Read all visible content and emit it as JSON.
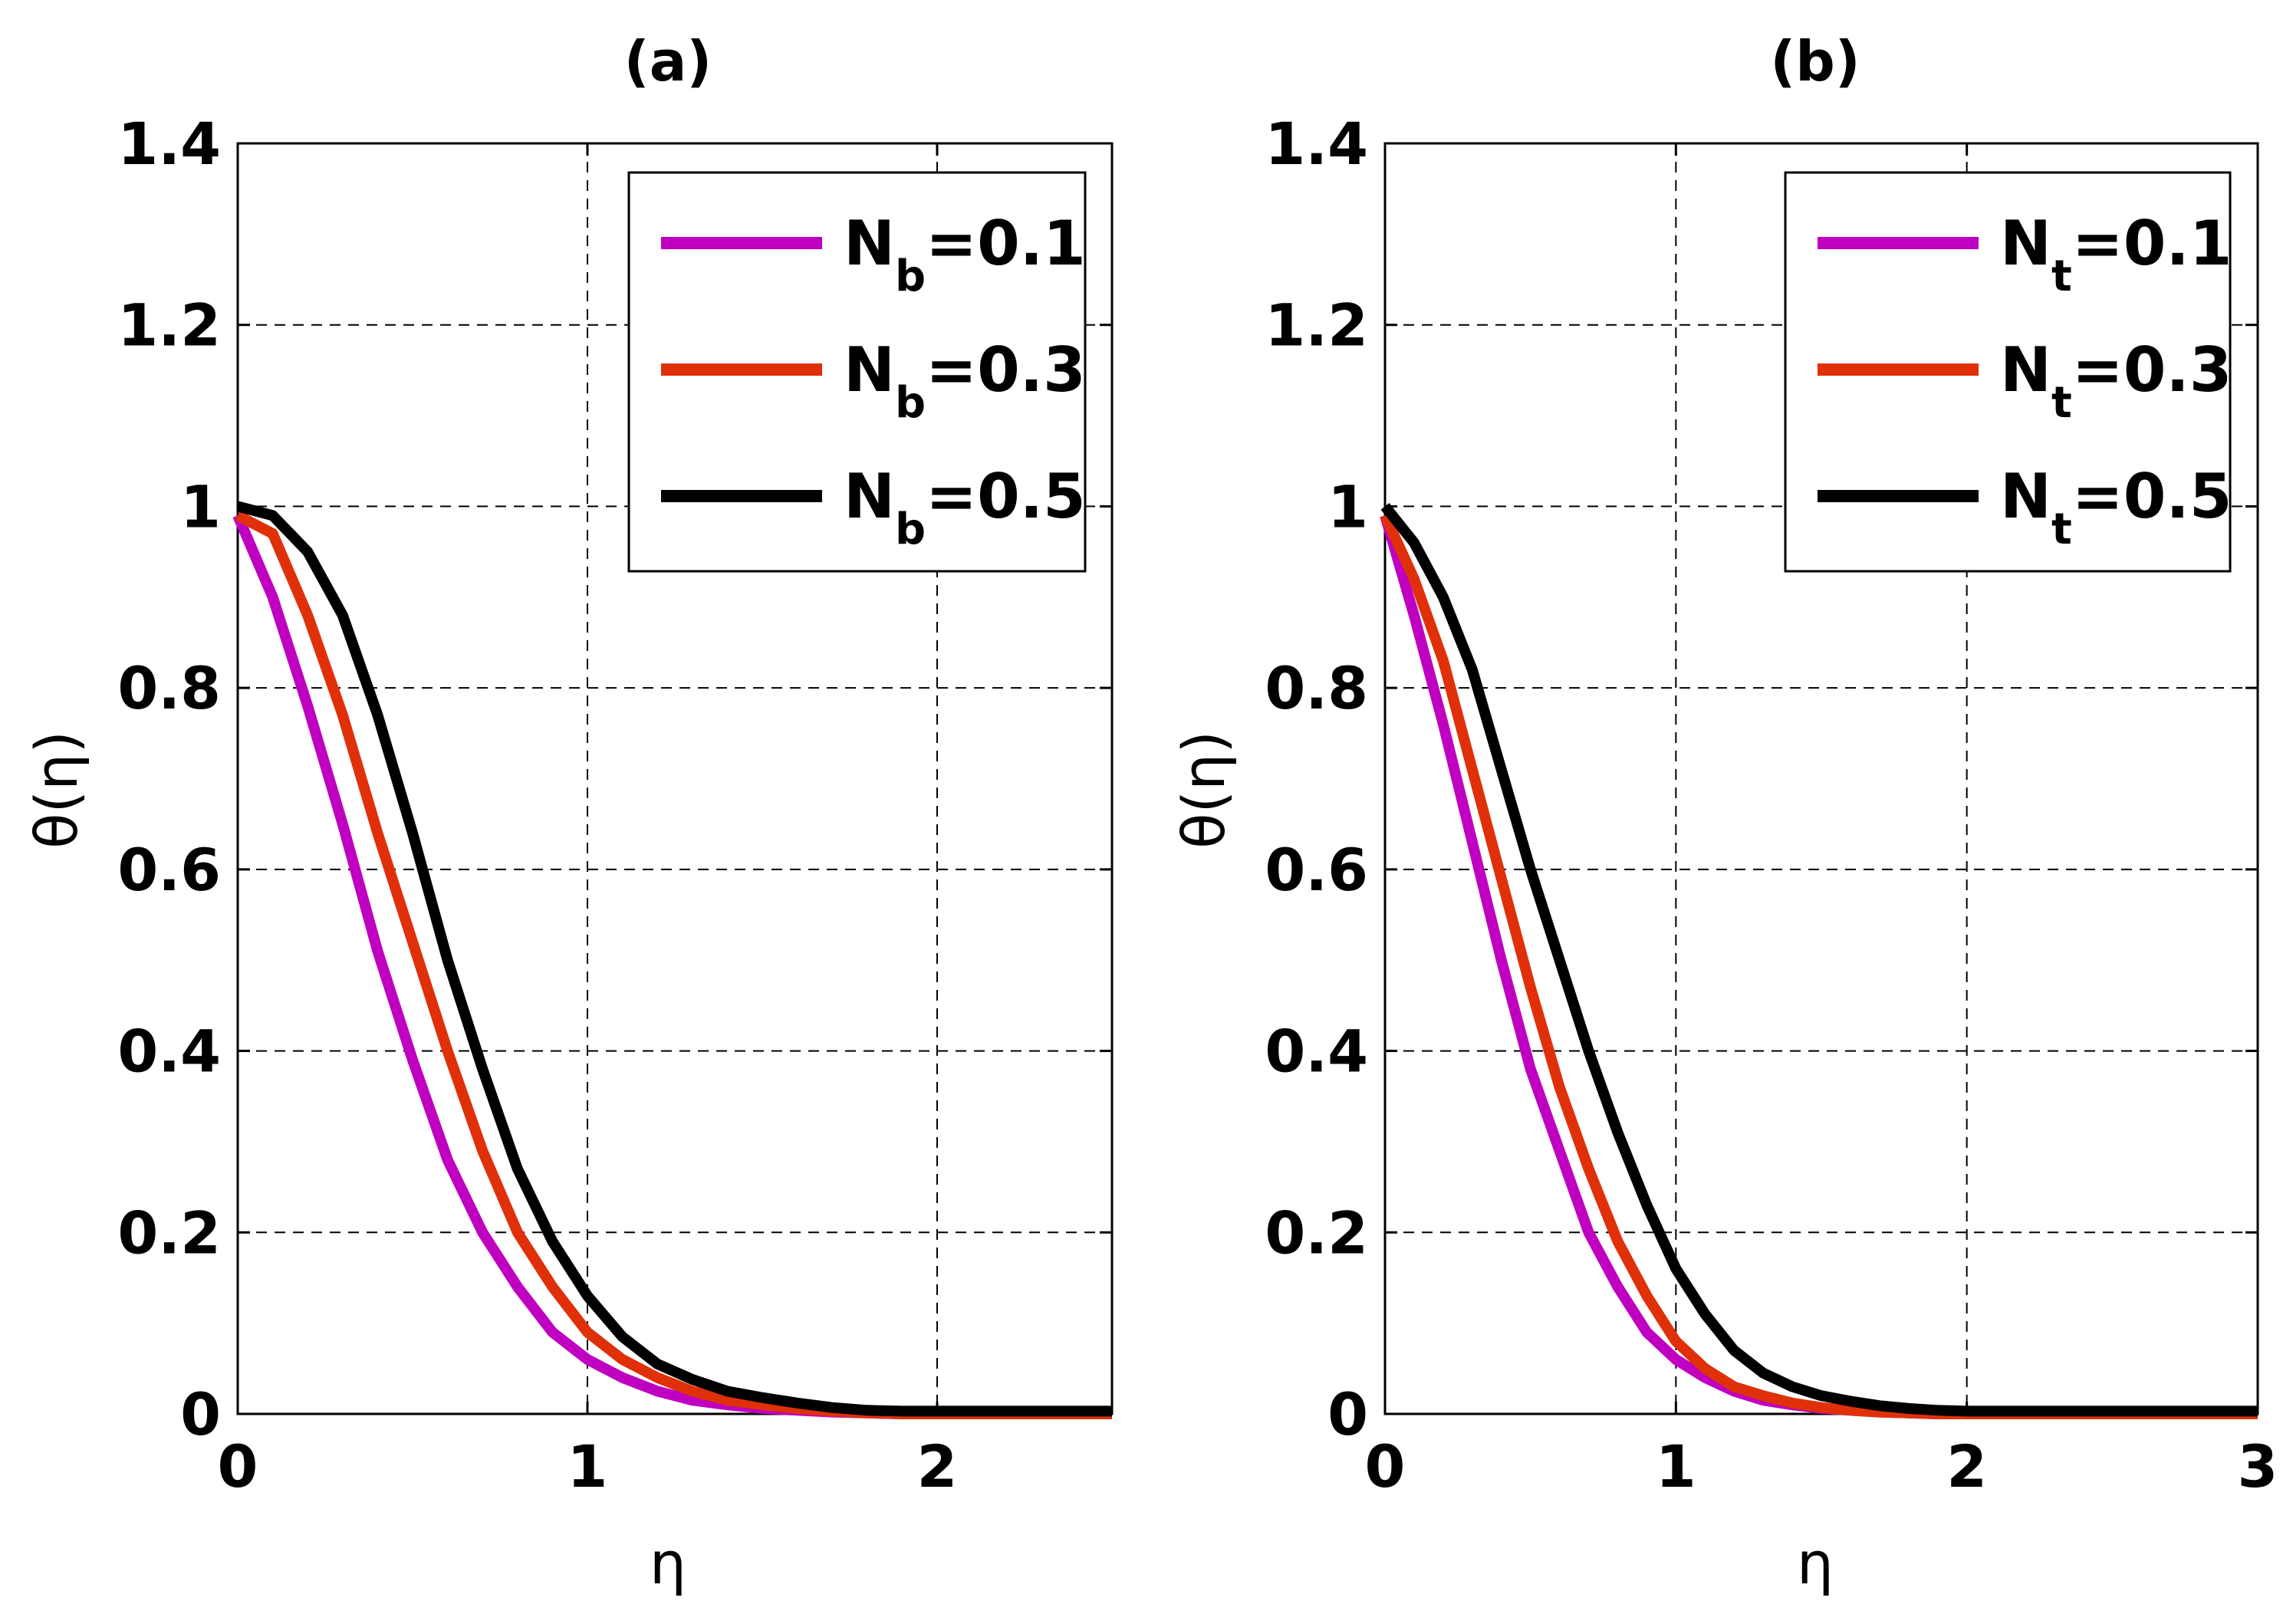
{
  "chart_data": [
    {
      "type": "line",
      "title": "(a)",
      "xlabel": "η",
      "ylabel": "θ(η)",
      "xlim": [
        0,
        2.5
      ],
      "ylim": [
        0,
        1.4
      ],
      "xticks": [
        0,
        1,
        2
      ],
      "xtick_labels": [
        "0",
        "1",
        "2"
      ],
      "yticks": [
        0,
        0.2,
        0.4,
        0.6,
        0.8,
        1.0,
        1.2,
        1.4
      ],
      "ytick_labels": [
        "0",
        "0.2",
        "0.4",
        "0.6",
        "0.8",
        "1",
        "1.2",
        "1.4"
      ],
      "grid": true,
      "legend_position": "top-right",
      "series": [
        {
          "name": "Nb=0.1",
          "legend_main": "N",
          "legend_sub": "b",
          "legend_value": "=0.1",
          "color": "#c000c0",
          "x": [
            0,
            0.1,
            0.2,
            0.3,
            0.4,
            0.5,
            0.6,
            0.7,
            0.8,
            0.9,
            1.0,
            1.1,
            1.2,
            1.3,
            1.4,
            1.5,
            1.6,
            1.7,
            1.8,
            1.9,
            2.0,
            2.5
          ],
          "y": [
            0.99,
            0.9,
            0.78,
            0.65,
            0.51,
            0.39,
            0.28,
            0.2,
            0.14,
            0.09,
            0.06,
            0.04,
            0.025,
            0.015,
            0.01,
            0.006,
            0.004,
            0.002,
            0.001,
            0.0,
            0.0,
            0.0
          ]
        },
        {
          "name": "Nb=0.3",
          "legend_main": "N",
          "legend_sub": "b",
          "legend_value": "=0.3",
          "color": "#e0300a",
          "x": [
            0,
            0.1,
            0.2,
            0.3,
            0.4,
            0.5,
            0.6,
            0.7,
            0.8,
            0.9,
            1.0,
            1.1,
            1.2,
            1.3,
            1.4,
            1.5,
            1.6,
            1.7,
            1.8,
            1.9,
            2.0,
            2.5
          ],
          "y": [
            0.99,
            0.97,
            0.88,
            0.77,
            0.64,
            0.52,
            0.4,
            0.29,
            0.2,
            0.14,
            0.09,
            0.06,
            0.04,
            0.025,
            0.015,
            0.01,
            0.006,
            0.003,
            0.001,
            0.0,
            0.0,
            0.0
          ]
        },
        {
          "name": "Nb=0.5",
          "legend_main": "N",
          "legend_sub": "b",
          "legend_value": "=0.5",
          "color": "#000000",
          "x": [
            0,
            0.1,
            0.2,
            0.3,
            0.4,
            0.5,
            0.6,
            0.7,
            0.8,
            0.9,
            1.0,
            1.1,
            1.2,
            1.3,
            1.4,
            1.5,
            1.6,
            1.7,
            1.8,
            1.9,
            2.0,
            2.5
          ],
          "y": [
            1.0,
            0.99,
            0.95,
            0.88,
            0.77,
            0.64,
            0.5,
            0.38,
            0.27,
            0.19,
            0.13,
            0.085,
            0.055,
            0.038,
            0.025,
            0.018,
            0.012,
            0.007,
            0.004,
            0.003,
            0.003,
            0.003
          ]
        }
      ]
    },
    {
      "type": "line",
      "title": "(b)",
      "xlabel": "η",
      "ylabel": "θ(η)",
      "xlim": [
        0,
        3
      ],
      "ylim": [
        0,
        1.4
      ],
      "xticks": [
        0,
        1,
        2,
        3
      ],
      "xtick_labels": [
        "0",
        "1",
        "2",
        "3"
      ],
      "yticks": [
        0,
        0.2,
        0.4,
        0.6,
        0.8,
        1.0,
        1.2,
        1.4
      ],
      "ytick_labels": [
        "0",
        "0.2",
        "0.4",
        "0.6",
        "0.8",
        "1",
        "1.2",
        "1.4"
      ],
      "grid": true,
      "legend_position": "top-right",
      "series": [
        {
          "name": "Nt=0.1",
          "legend_main": "N",
          "legend_sub": "t",
          "legend_value": "=0.1",
          "color": "#c000c0",
          "x": [
            0,
            0.1,
            0.2,
            0.3,
            0.4,
            0.5,
            0.6,
            0.7,
            0.8,
            0.9,
            1.0,
            1.1,
            1.2,
            1.3,
            1.4,
            1.5,
            1.6,
            1.7,
            1.8,
            1.9,
            2.0,
            3.0
          ],
          "y": [
            0.99,
            0.88,
            0.76,
            0.63,
            0.5,
            0.38,
            0.29,
            0.2,
            0.14,
            0.09,
            0.06,
            0.04,
            0.025,
            0.015,
            0.01,
            0.006,
            0.004,
            0.002,
            0.001,
            0.0,
            0.0,
            0.0
          ]
        },
        {
          "name": "Nt=0.3",
          "legend_main": "N",
          "legend_sub": "t",
          "legend_value": "=0.3",
          "color": "#e0300a",
          "x": [
            0,
            0.1,
            0.2,
            0.3,
            0.4,
            0.5,
            0.6,
            0.7,
            0.8,
            0.9,
            1.0,
            1.1,
            1.2,
            1.3,
            1.4,
            1.5,
            1.6,
            1.7,
            1.8,
            1.9,
            2.0,
            3.0
          ],
          "y": [
            0.99,
            0.92,
            0.83,
            0.71,
            0.59,
            0.47,
            0.36,
            0.27,
            0.19,
            0.13,
            0.08,
            0.05,
            0.03,
            0.02,
            0.012,
            0.007,
            0.004,
            0.002,
            0.001,
            0.0,
            0.0,
            0.0
          ]
        },
        {
          "name": "Nt=0.5",
          "legend_main": "N",
          "legend_sub": "t",
          "legend_value": "=0.5",
          "color": "#000000",
          "x": [
            0,
            0.1,
            0.2,
            0.3,
            0.4,
            0.5,
            0.6,
            0.7,
            0.8,
            0.9,
            1.0,
            1.1,
            1.2,
            1.3,
            1.4,
            1.5,
            1.6,
            1.7,
            1.8,
            1.9,
            2.0,
            3.0
          ],
          "y": [
            1.0,
            0.96,
            0.9,
            0.82,
            0.71,
            0.6,
            0.5,
            0.4,
            0.31,
            0.23,
            0.16,
            0.11,
            0.07,
            0.045,
            0.03,
            0.02,
            0.014,
            0.009,
            0.006,
            0.004,
            0.003,
            0.003
          ]
        }
      ]
    }
  ]
}
